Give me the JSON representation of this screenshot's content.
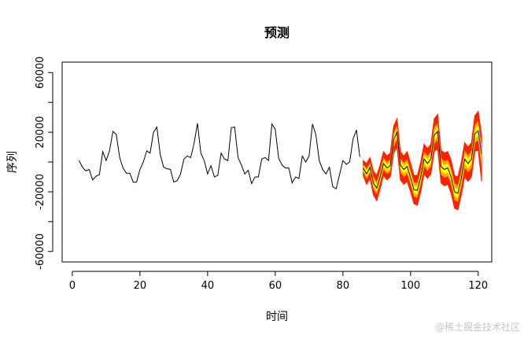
{
  "chart_data": {
    "type": "line",
    "title": "预测",
    "xlabel": "时间",
    "ylabel": "序列",
    "xlim": [
      -3,
      124
    ],
    "ylim": [
      -67000,
      67000
    ],
    "x_ticks": [
      0,
      20,
      40,
      60,
      80,
      100,
      120
    ],
    "y_ticks": [
      60000,
      20000,
      -20000,
      -60000
    ],
    "y_tick_labels": [
      "60000",
      "20000",
      "-20000",
      "-60000"
    ],
    "y_minor_ticks": [
      40000,
      0,
      -40000
    ],
    "grid": false,
    "watermark": "@稀土掘金技术社区",
    "colors": {
      "history": "#000000",
      "forecast": "#000000",
      "band_outer": "#ff2200",
      "band_inner": "#ffff00",
      "band_mid": "#ffaa00",
      "last_point": "#2e2eff"
    },
    "series": [
      {
        "values": [
          {
            "x": 2,
            "y": 1000
          },
          {
            "x": 3,
            "y": -3500
          },
          {
            "x": 4,
            "y": -6000
          },
          {
            "x": 5,
            "y": -5000
          },
          {
            "x": 6,
            "y": -12000
          },
          {
            "x": 7,
            "y": -9500
          },
          {
            "x": 8,
            "y": -8500
          },
          {
            "x": 9,
            "y": 7000
          },
          {
            "x": 10,
            "y": 1000
          },
          {
            "x": 11,
            "y": 7500
          },
          {
            "x": 12,
            "y": 20500
          },
          {
            "x": 13,
            "y": 18500
          },
          {
            "x": 14,
            "y": 3000
          },
          {
            "x": 15,
            "y": -4000
          },
          {
            "x": 16,
            "y": -7500
          },
          {
            "x": 17,
            "y": -7500
          },
          {
            "x": 18,
            "y": -13500
          },
          {
            "x": 19,
            "y": -13500
          },
          {
            "x": 20,
            "y": -5000
          },
          {
            "x": 21,
            "y": 0
          },
          {
            "x": 22,
            "y": 7500
          },
          {
            "x": 23,
            "y": 6000
          },
          {
            "x": 24,
            "y": 20000
          },
          {
            "x": 25,
            "y": 23500
          },
          {
            "x": 26,
            "y": 5000
          },
          {
            "x": 27,
            "y": -3500
          },
          {
            "x": 28,
            "y": -4500
          },
          {
            "x": 29,
            "y": -5000
          },
          {
            "x": 30,
            "y": -13500
          },
          {
            "x": 31,
            "y": -12500
          },
          {
            "x": 32,
            "y": -8000
          },
          {
            "x": 33,
            "y": 2000
          },
          {
            "x": 34,
            "y": 4000
          },
          {
            "x": 35,
            "y": 3000
          },
          {
            "x": 36,
            "y": 12500
          },
          {
            "x": 37,
            "y": 26000
          },
          {
            "x": 38,
            "y": 6000
          },
          {
            "x": 39,
            "y": 1000
          },
          {
            "x": 40,
            "y": -8000
          },
          {
            "x": 41,
            "y": -2500
          },
          {
            "x": 42,
            "y": -10000
          },
          {
            "x": 43,
            "y": -9000
          },
          {
            "x": 44,
            "y": 6000
          },
          {
            "x": 45,
            "y": 2000
          },
          {
            "x": 46,
            "y": 1000
          },
          {
            "x": 47,
            "y": 23000
          },
          {
            "x": 48,
            "y": 23500
          },
          {
            "x": 49,
            "y": 3000
          },
          {
            "x": 50,
            "y": -2000
          },
          {
            "x": 51,
            "y": -8000
          },
          {
            "x": 52,
            "y": -5500
          },
          {
            "x": 53,
            "y": -14500
          },
          {
            "x": 54,
            "y": -10000
          },
          {
            "x": 55,
            "y": -10000
          },
          {
            "x": 56,
            "y": 2000
          },
          {
            "x": 57,
            "y": 3000
          },
          {
            "x": 58,
            "y": 1000
          },
          {
            "x": 59,
            "y": 25500
          },
          {
            "x": 60,
            "y": 22000
          },
          {
            "x": 61,
            "y": 2500
          },
          {
            "x": 62,
            "y": -2000
          },
          {
            "x": 63,
            "y": -4000
          },
          {
            "x": 64,
            "y": -4000
          },
          {
            "x": 65,
            "y": -14000
          },
          {
            "x": 66,
            "y": -10000
          },
          {
            "x": 67,
            "y": -11000
          },
          {
            "x": 68,
            "y": 4000
          },
          {
            "x": 69,
            "y": 0
          },
          {
            "x": 70,
            "y": 4000
          },
          {
            "x": 71,
            "y": 25500
          },
          {
            "x": 72,
            "y": 18500
          },
          {
            "x": 73,
            "y": 1000
          },
          {
            "x": 74,
            "y": -5000
          },
          {
            "x": 75,
            "y": -8000
          },
          {
            "x": 76,
            "y": -3500
          },
          {
            "x": 77,
            "y": -16500
          },
          {
            "x": 78,
            "y": -18000
          },
          {
            "x": 79,
            "y": -8500
          },
          {
            "x": 80,
            "y": 1000
          },
          {
            "x": 81,
            "y": -1500
          },
          {
            "x": 82,
            "y": 0
          },
          {
            "x": 83,
            "y": 15500
          },
          {
            "x": 84,
            "y": 21500
          },
          {
            "x": 85,
            "y": 3500
          }
        ]
      },
      {
        "values": [
          {
            "x": 86,
            "y": -4000
          },
          {
            "x": 87,
            "y": -8000
          },
          {
            "x": 88,
            "y": -3500
          },
          {
            "x": 89,
            "y": -14000
          },
          {
            "x": 90,
            "y": -17500
          },
          {
            "x": 91,
            "y": -10000
          },
          {
            "x": 92,
            "y": -1000
          },
          {
            "x": 93,
            "y": -4000
          },
          {
            "x": 94,
            "y": -2500
          },
          {
            "x": 95,
            "y": 15000
          },
          {
            "x": 96,
            "y": 20000
          },
          {
            "x": 97,
            "y": -2000
          },
          {
            "x": 98,
            "y": -5000
          },
          {
            "x": 99,
            "y": -3000
          },
          {
            "x": 100,
            "y": -10500
          },
          {
            "x": 101,
            "y": -18500
          },
          {
            "x": 102,
            "y": -19000
          },
          {
            "x": 103,
            "y": -10000
          },
          {
            "x": 104,
            "y": 2000
          },
          {
            "x": 105,
            "y": -1000
          },
          {
            "x": 106,
            "y": 2000
          },
          {
            "x": 107,
            "y": 18000
          },
          {
            "x": 108,
            "y": 20500
          },
          {
            "x": 109,
            "y": -3000
          },
          {
            "x": 110,
            "y": -5000
          },
          {
            "x": 111,
            "y": -4000
          },
          {
            "x": 112,
            "y": -10000
          },
          {
            "x": 113,
            "y": -20000
          },
          {
            "x": 114,
            "y": -21000
          },
          {
            "x": 115,
            "y": -11000
          },
          {
            "x": 116,
            "y": 2000
          },
          {
            "x": 117,
            "y": -1000
          },
          {
            "x": 118,
            "y": 2000
          },
          {
            "x": 119,
            "y": 19000
          },
          {
            "x": 120,
            "y": 21000
          },
          {
            "x": 121,
            "y": 5000
          }
        ]
      }
    ],
    "bands": {
      "lower_outer": [
        {
          "x": 86,
          "y": -9000
        },
        {
          "x": 87,
          "y": -15000
        },
        {
          "x": 88,
          "y": -11000
        },
        {
          "x": 89,
          "y": -22000
        },
        {
          "x": 90,
          "y": -26000
        },
        {
          "x": 91,
          "y": -18000
        },
        {
          "x": 92,
          "y": -9000
        },
        {
          "x": 93,
          "y": -12000
        },
        {
          "x": 94,
          "y": -10000
        },
        {
          "x": 95,
          "y": 6000
        },
        {
          "x": 96,
          "y": 10000
        },
        {
          "x": 97,
          "y": -12000
        },
        {
          "x": 98,
          "y": -15000
        },
        {
          "x": 99,
          "y": -13000
        },
        {
          "x": 100,
          "y": -20000
        },
        {
          "x": 101,
          "y": -28000
        },
        {
          "x": 102,
          "y": -29000
        },
        {
          "x": 103,
          "y": -20000
        },
        {
          "x": 104,
          "y": -8000
        },
        {
          "x": 105,
          "y": -11000
        },
        {
          "x": 106,
          "y": -8000
        },
        {
          "x": 107,
          "y": 7000
        },
        {
          "x": 108,
          "y": 9000
        },
        {
          "x": 109,
          "y": -14000
        },
        {
          "x": 110,
          "y": -16000
        },
        {
          "x": 111,
          "y": -15000
        },
        {
          "x": 112,
          "y": -21000
        },
        {
          "x": 113,
          "y": -31000
        },
        {
          "x": 114,
          "y": -32000
        },
        {
          "x": 115,
          "y": -22000
        },
        {
          "x": 116,
          "y": -10000
        },
        {
          "x": 117,
          "y": -13000
        },
        {
          "x": 118,
          "y": -10000
        },
        {
          "x": 119,
          "y": 7000
        },
        {
          "x": 120,
          "y": 8000
        },
        {
          "x": 121,
          "y": -13000
        }
      ],
      "upper_outer": [
        {
          "x": 86,
          "y": 1000
        },
        {
          "x": 87,
          "y": -1000
        },
        {
          "x": 88,
          "y": 3000
        },
        {
          "x": 89,
          "y": -6000
        },
        {
          "x": 90,
          "y": -9000
        },
        {
          "x": 91,
          "y": -2000
        },
        {
          "x": 92,
          "y": 7000
        },
        {
          "x": 93,
          "y": 4000
        },
        {
          "x": 94,
          "y": 6000
        },
        {
          "x": 95,
          "y": 24000
        },
        {
          "x": 96,
          "y": 29000
        },
        {
          "x": 97,
          "y": 7000
        },
        {
          "x": 98,
          "y": 4000
        },
        {
          "x": 99,
          "y": 7000
        },
        {
          "x": 100,
          "y": -1000
        },
        {
          "x": 101,
          "y": -9000
        },
        {
          "x": 102,
          "y": -9000
        },
        {
          "x": 103,
          "y": 0
        },
        {
          "x": 104,
          "y": 12000
        },
        {
          "x": 105,
          "y": 9000
        },
        {
          "x": 106,
          "y": 12000
        },
        {
          "x": 107,
          "y": 29000
        },
        {
          "x": 108,
          "y": 32000
        },
        {
          "x": 109,
          "y": 8000
        },
        {
          "x": 110,
          "y": 6000
        },
        {
          "x": 111,
          "y": 7000
        },
        {
          "x": 112,
          "y": 1000
        },
        {
          "x": 113,
          "y": -9000
        },
        {
          "x": 114,
          "y": -10000
        },
        {
          "x": 115,
          "y": 0
        },
        {
          "x": 116,
          "y": 13000
        },
        {
          "x": 117,
          "y": 10000
        },
        {
          "x": 118,
          "y": 13000
        },
        {
          "x": 119,
          "y": 31000
        },
        {
          "x": 120,
          "y": 34000
        },
        {
          "x": 121,
          "y": 18000
        }
      ]
    }
  }
}
